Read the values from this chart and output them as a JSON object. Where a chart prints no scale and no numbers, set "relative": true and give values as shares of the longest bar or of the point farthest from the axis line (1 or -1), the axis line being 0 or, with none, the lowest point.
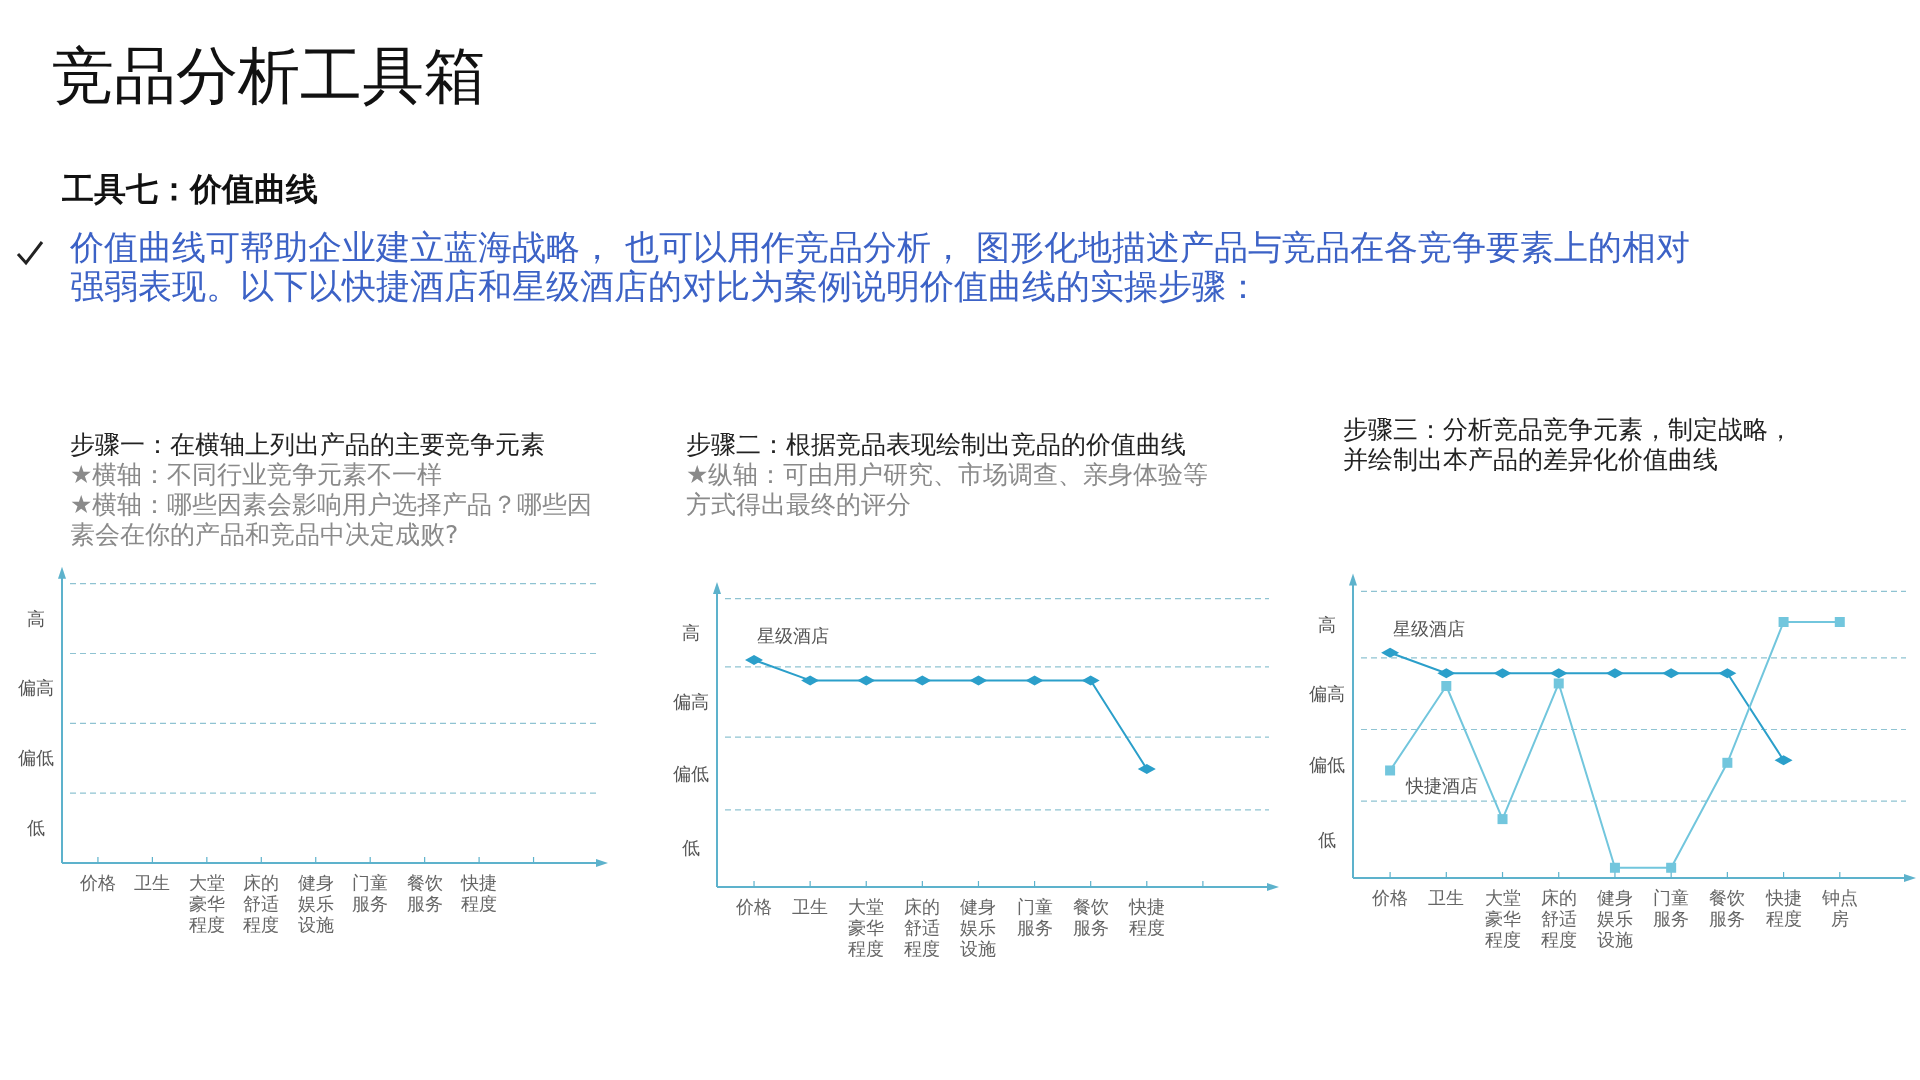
{
  "chart_data": [
    {
      "type": "other",
      "title": "竞品分析工具箱",
      "subtitle": "工具七：价值曲线",
      "annotations": [
        "价值曲线可帮助企业建立蓝海战略， 也可以用作竞品分析， 图形化地描述产品与竞品在各竞争要素上的相对强弱表现。以下以快捷酒店和星级酒店的对比为案例说明价值曲线的实操步骤："
      ]
    },
    {
      "type": "other",
      "title": "步骤一：在横轴上列出产品的主要竞争元素",
      "annotations": [
        "★横轴：不同行业竞争元素不一样",
        "★横轴：哪些因素会影响用户选择产品？哪些因素会在你的产品和竞品中决定成败?"
      ],
      "categories": [
        "价格",
        "卫生",
        "大堂豪华程度",
        "床的舒适程度",
        "健身娱乐设施",
        "门童服务",
        "餐饮服务",
        "快捷程度",
        null
      ],
      "y_categories": [
        "高",
        "偏高",
        "偏低",
        "低"
      ]
    },
    {
      "type": "line",
      "relative": true,
      "title": "步骤二：根据竞品表现绘制出竞品的价值曲线",
      "annotations": [
        "★纵轴：可由用户研究、市场调查、亲身体验等方式得出最终的评分"
      ],
      "y_categories": [
        "高",
        "偏高",
        "偏低",
        "低"
      ],
      "categories": [
        "价格",
        "卫生",
        "大堂豪华程度",
        "床的舒适程度",
        "健身娱乐设施",
        "门童服务",
        "餐饮服务",
        "快捷程度",
        null
      ],
      "ref_lines": [
        {
          "axis": "y",
          "value": 0.34,
          "color": "#8fc3d2",
          "line_style": "dashed"
        },
        {
          "axis": "y",
          "value": 0.66,
          "color": "#8fc3d2",
          "line_style": "dashed"
        },
        {
          "axis": "y",
          "value": 0.97,
          "color": "#8fc3d2",
          "line_style": "dashed"
        },
        {
          "axis": "y",
          "value": 1.27,
          "color": "#8fc3d2",
          "line_style": "dashed"
        }
      ],
      "series": [
        {
          "name": "星级酒店",
          "color": "#2b9fca",
          "marker": "diamond",
          "values": [
            1,
            0.91,
            0.91,
            0.91,
            0.91,
            0.91,
            0.91,
            0.52,
            null
          ]
        }
      ]
    },
    {
      "type": "line",
      "relative": true,
      "title": "步骤三：分析竞品竞争元素，制定战略，并绘制出本产品的差异化价值曲线",
      "y_categories": [
        "高",
        "偏高",
        "偏低",
        "低"
      ],
      "categories": [
        "价格",
        "卫生",
        "大堂豪华程度",
        "床的舒适程度",
        "健身娱乐设施",
        "门童服务",
        "餐饮服务",
        "快捷程度",
        "钟点房"
      ],
      "ref_lines": [
        {
          "axis": "y",
          "value": 0.3,
          "color": "#8fc3d2",
          "line_style": "dashed"
        },
        {
          "axis": "y",
          "value": 0.58,
          "color": "#8fc3d2",
          "line_style": "dashed"
        },
        {
          "axis": "y",
          "value": 0.86,
          "color": "#8fc3d2",
          "line_style": "dashed"
        },
        {
          "axis": "y",
          "value": 1.12,
          "color": "#8fc3d2",
          "line_style": "dashed"
        }
      ],
      "series": [
        {
          "name": "星级酒店",
          "color": "#2b9fca",
          "marker": "diamond",
          "values": [
            0.88,
            0.8,
            0.8,
            0.8,
            0.8,
            0.8,
            0.8,
            0.46,
            null
          ]
        },
        {
          "name": "快捷酒店",
          "color": "#72c6dd",
          "marker": "square",
          "values": [
            0.42,
            0.75,
            0.23,
            0.76,
            0.04,
            0.04,
            0.45,
            1,
            1
          ]
        }
      ]
    }
  ]
}
